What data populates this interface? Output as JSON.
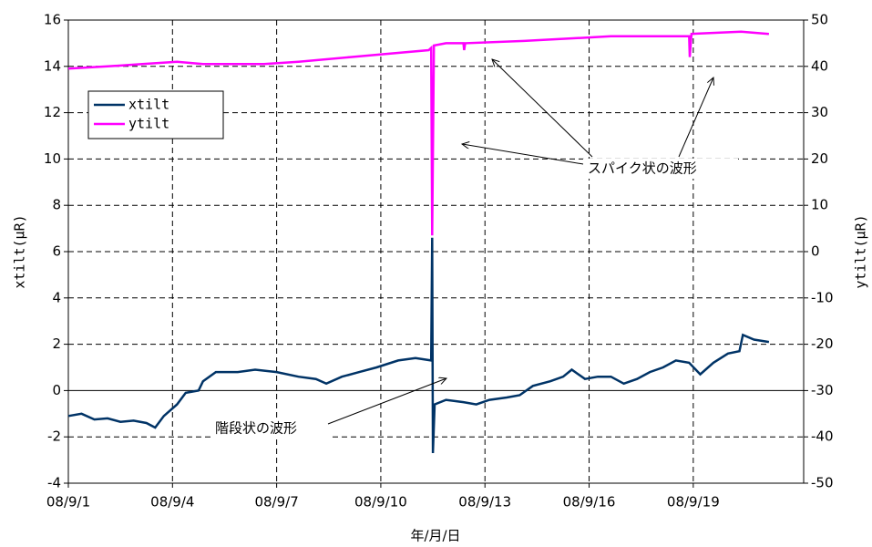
{
  "chart_data": {
    "type": "line",
    "xlabel": "年/月/日",
    "ylabel": "xtilt(μR)",
    "y2label": "ytilt(μR)",
    "xlim": [
      1,
      22.18
    ],
    "xticks": [
      {
        "value": 1,
        "label": "08/9/1"
      },
      {
        "value": 4,
        "label": "08/9/4"
      },
      {
        "value": 7,
        "label": "08/9/7"
      },
      {
        "value": 10,
        "label": "08/9/10"
      },
      {
        "value": 13,
        "label": "08/9/13"
      },
      {
        "value": 16,
        "label": "08/9/16"
      },
      {
        "value": 19,
        "label": "08/9/19"
      }
    ],
    "ylim": [
      -4,
      16
    ],
    "yticks": [
      -4,
      -2,
      0,
      2,
      4,
      6,
      8,
      10,
      12,
      14,
      16
    ],
    "y2lim": [
      -50,
      50
    ],
    "y2ticks": [
      -50,
      -40,
      -30,
      -20,
      -10,
      0,
      10,
      20,
      30,
      40,
      50
    ],
    "grid": true,
    "legend": "upper left",
    "series": [
      {
        "name": "xtilt",
        "color": "#003366",
        "x": [
          1.0,
          1.38,
          1.75,
          2.13,
          2.5,
          2.88,
          3.25,
          3.5,
          3.75,
          4.13,
          4.38,
          4.75,
          4.88,
          5.25,
          5.88,
          6.38,
          7.0,
          7.63,
          8.13,
          8.43,
          8.88,
          9.38,
          9.88,
          10.5,
          11.0,
          11.45,
          11.48,
          11.5,
          11.55,
          11.88,
          12.38,
          12.75,
          13.13,
          13.63,
          14.0,
          14.38,
          14.88,
          15.25,
          15.5,
          15.88,
          16.25,
          16.63,
          17.0,
          17.38,
          17.75,
          18.13,
          18.5,
          18.88,
          19.2,
          19.58,
          20.0,
          20.33,
          20.43,
          20.75,
          21.18
        ],
        "values": [
          -1.1,
          -1.0,
          -1.25,
          -1.2,
          -1.35,
          -1.3,
          -1.4,
          -1.6,
          -1.1,
          -0.6,
          -0.1,
          0.0,
          0.4,
          0.8,
          0.8,
          0.9,
          0.8,
          0.6,
          0.5,
          0.3,
          0.6,
          0.8,
          1.0,
          1.3,
          1.4,
          1.3,
          6.6,
          -2.7,
          -0.6,
          -0.4,
          -0.5,
          -0.6,
          -0.4,
          -0.3,
          -0.2,
          0.2,
          0.4,
          0.6,
          0.9,
          0.5,
          0.6,
          0.6,
          0.3,
          0.5,
          0.8,
          1.0,
          1.3,
          1.2,
          0.7,
          1.2,
          1.6,
          1.7,
          2.4,
          2.2,
          2.1
        ]
      },
      {
        "name": "ytilt",
        "color": "#ff00ff",
        "axis": "y2",
        "x": [
          1.0,
          2.13,
          3.13,
          4.13,
          4.88,
          6.63,
          7.63,
          9.13,
          11.38,
          11.45,
          11.48,
          11.53,
          11.88,
          12.38,
          12.4,
          12.43,
          14.13,
          16.63,
          18.88,
          18.9,
          18.95,
          20.38,
          21.18
        ],
        "values": [
          39.5,
          40,
          40.5,
          41,
          40.5,
          40.5,
          41,
          42,
          43.5,
          44,
          3.5,
          44.5,
          45,
          45,
          43.5,
          45,
          45.5,
          46.5,
          46.5,
          42,
          47,
          47.5,
          47
        ]
      }
    ],
    "annotations": [
      {
        "text": "スパイク状の波形"
      },
      {
        "text": "階段状の波形"
      }
    ]
  }
}
